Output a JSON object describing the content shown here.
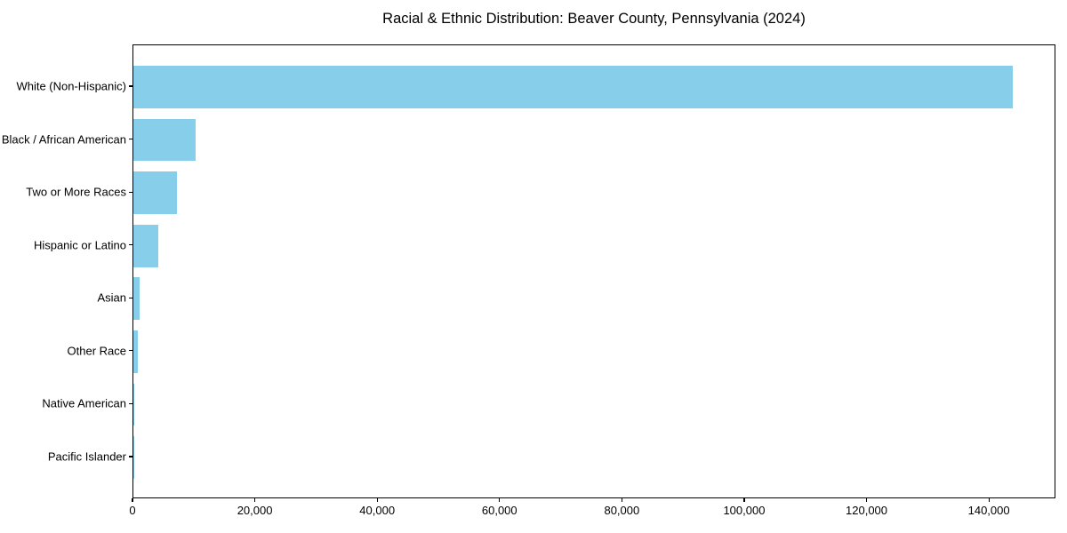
{
  "figure": {
    "background_color": "#ffffff",
    "text_color": "#000000",
    "spine_color": "#000000"
  },
  "chart_data": {
    "type": "bar",
    "orientation": "horizontal",
    "title": "Racial & Ethnic Distribution: Beaver County, Pennsylvania (2024)",
    "xlabel": "",
    "ylabel": "",
    "categories": [
      "White (Non-Hispanic)",
      "Black / African American",
      "Two or More Races",
      "Hispanic or Latino",
      "Asian",
      "Other Race",
      "Native American",
      "Pacific Islander"
    ],
    "values": [
      143700,
      10140,
      7170,
      4000,
      950,
      700,
      150,
      30
    ],
    "bar_color": "#87CEEB",
    "xlim": [
      0,
      150885
    ],
    "xtick_values": [
      0,
      20000,
      40000,
      60000,
      80000,
      100000,
      120000,
      140000
    ],
    "xtick_labels": [
      "0",
      "20,000",
      "40,000",
      "60,000",
      "80,000",
      "100,000",
      "120,000",
      "140,000"
    ],
    "grid": false,
    "legend": false
  }
}
